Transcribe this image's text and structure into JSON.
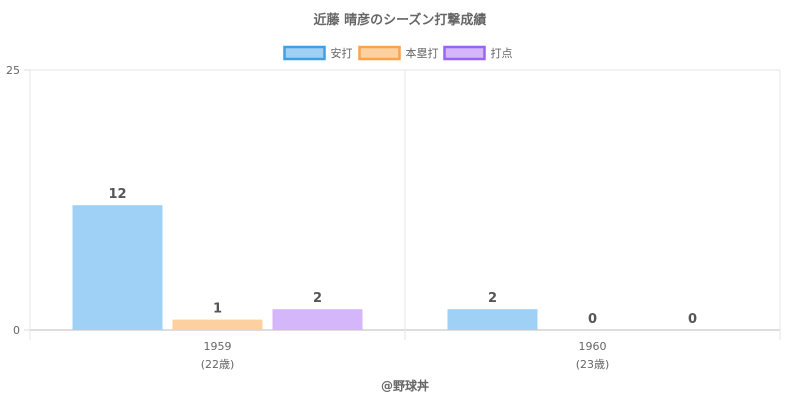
{
  "chart_data": {
    "type": "bar",
    "title": "近藤 晴彦のシーズン打撃成績",
    "categories": [
      {
        "year": "1959",
        "age": "(22歳)"
      },
      {
        "year": "1960",
        "age": "(23歳)"
      }
    ],
    "series": [
      {
        "name": "安打",
        "values": [
          12,
          2
        ],
        "color": "#9fd0f5",
        "border": "#3fa0e8"
      },
      {
        "name": "本塁打",
        "values": [
          1,
          0
        ],
        "color": "#fdd19f",
        "border": "#f9a34a"
      },
      {
        "name": "打点",
        "values": [
          2,
          0
        ],
        "color": "#d4b6fb",
        "border": "#9b63f2"
      }
    ],
    "ylim": [
      0,
      25
    ],
    "yticks": [
      0,
      25
    ],
    "grid": true,
    "legend": "top",
    "credit": "@野球丼"
  }
}
